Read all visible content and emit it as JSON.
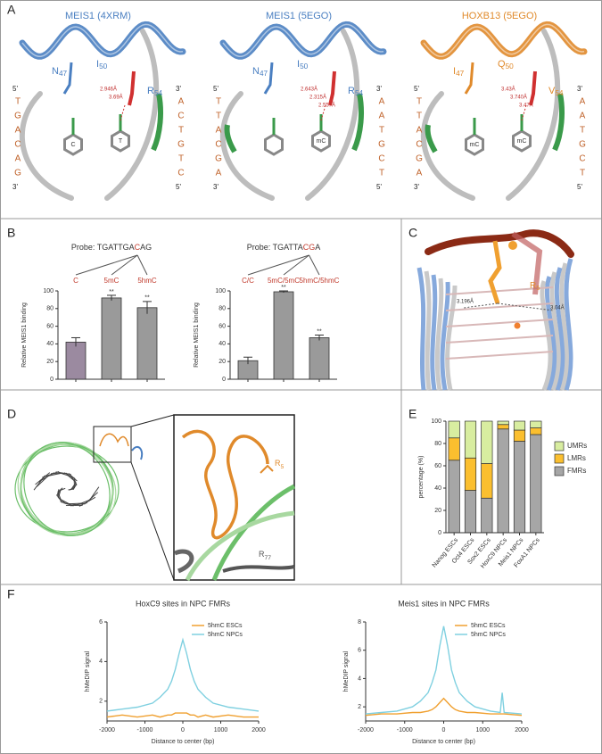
{
  "panels": [
    "A",
    "B",
    "C",
    "D",
    "E",
    "F"
  ],
  "structures": [
    {
      "title": "MEIS1 (4XRM)",
      "color": "#4a7fc1",
      "residues": [
        {
          "aa": "N",
          "pos": "47"
        },
        {
          "aa": "I",
          "pos": "50"
        },
        {
          "aa": "R",
          "pos": "54"
        }
      ],
      "strand_left": {
        "start": "5'",
        "bases": [
          "T",
          "G",
          "A",
          "C",
          "A",
          "G"
        ],
        "end": "3'"
      },
      "strand_right": {
        "start": "3'",
        "bases": [
          "A",
          "C",
          "T",
          "G",
          "T",
          "C"
        ],
        "end": "5'"
      },
      "rings": [
        "C",
        "T"
      ],
      "distances": [
        "2.946Å",
        "3.69Å"
      ]
    },
    {
      "title": "MEIS1 (5EGO)",
      "color": "#4a7fc1",
      "residues": [
        {
          "aa": "N",
          "pos": "47"
        },
        {
          "aa": "I",
          "pos": "50"
        },
        {
          "aa": "R",
          "pos": "54"
        }
      ],
      "strand_left": {
        "start": "5'",
        "bases": [
          "T",
          "T",
          "A",
          "C",
          "G",
          "A"
        ],
        "end": "3'"
      },
      "strand_right": {
        "start": "3'",
        "bases": [
          "A",
          "A",
          "T",
          "G",
          "C",
          "T"
        ],
        "end": "5'"
      },
      "rings": [
        "mC"
      ],
      "distances": [
        "2.643Å",
        "2.315Å",
        "2.557Å"
      ]
    },
    {
      "title": "HOXB13 (5EGO)",
      "color": "#e08a2b",
      "residues": [
        {
          "aa": "I",
          "pos": "47"
        },
        {
          "aa": "Q",
          "pos": "50"
        },
        {
          "aa": "V",
          "pos": "54"
        }
      ],
      "strand_left": {
        "start": "5'",
        "bases": [
          "T",
          "T",
          "A",
          "C",
          "G",
          "A"
        ],
        "end": "3'"
      },
      "strand_right": {
        "start": "3'",
        "bases": [
          "A",
          "A",
          "T",
          "G",
          "C",
          "T"
        ],
        "end": "5'"
      },
      "rings": [
        "mC",
        "mC"
      ],
      "distances": [
        "3.43Å",
        "3.740Å",
        "3.47Å"
      ]
    }
  ],
  "panel_C": {
    "residue": {
      "aa": "R",
      "pos": "5"
    },
    "distances": [
      "3.196Å",
      "3.04Å"
    ]
  },
  "panel_D": {
    "residues": [
      {
        "aa": "R",
        "pos": "5"
      },
      {
        "aa": "R",
        "pos": "77"
      }
    ]
  },
  "chart_data": [
    {
      "type": "bar",
      "probe": {
        "prefix": "Probe: TGATTGA",
        "highlight": "C",
        "suffix": "AG"
      },
      "categories": [
        "C",
        "5mC",
        "5hmC"
      ],
      "values": [
        42,
        92,
        81
      ],
      "errors": [
        5,
        3,
        7
      ],
      "annotations": [
        null,
        "**",
        "**"
      ],
      "colors": [
        "#9b8aa0",
        "#9a9a9a",
        "#9a9a9a"
      ],
      "ylabel": "Relative MEIS1 binding",
      "ylim": [
        0,
        100
      ],
      "yticks": [
        0,
        20,
        40,
        60,
        80,
        100
      ]
    },
    {
      "type": "bar",
      "probe": {
        "prefix": "Probe: TGATTA",
        "highlight": "CG",
        "suffix": "A"
      },
      "categories": [
        "C/C",
        "5mC/5mC",
        "5hmC/5hmC"
      ],
      "values": [
        21,
        99,
        47
      ],
      "errors": [
        4,
        1,
        3
      ],
      "annotations": [
        null,
        "**",
        "**"
      ],
      "colors": [
        "#9a9a9a",
        "#9a9a9a",
        "#9a9a9a"
      ],
      "ylabel": "Relative MEIS1 binding",
      "ylim": [
        0,
        100
      ],
      "yticks": [
        0,
        20,
        40,
        60,
        80,
        100
      ]
    },
    {
      "type": "stacked_bar",
      "categories": [
        "Nanog ESCs",
        "Oct4 ESCs",
        "Sox2 ESCs",
        "HoxC9 NPCs",
        "Meis1 NPCs",
        "FoxA1 NPCs"
      ],
      "series": [
        {
          "name": "FMRs",
          "color": "#a6a6a6",
          "values": [
            65,
            38,
            31,
            93,
            82,
            88
          ]
        },
        {
          "name": "LMRs",
          "color": "#fbbf2f",
          "values": [
            20,
            29,
            31,
            4,
            10,
            6
          ]
        },
        {
          "name": "UMRs",
          "color": "#d8eda0",
          "values": [
            15,
            33,
            38,
            3,
            8,
            6
          ]
        }
      ],
      "ylabel": "percentage (%)",
      "ylim": [
        0,
        100
      ],
      "yticks": [
        0,
        20,
        40,
        60,
        80,
        100
      ],
      "legend": "right"
    },
    {
      "type": "line",
      "title": "HoxC9 sites in NPC FMRs",
      "xlabel": "Distance to center (bp)",
      "ylabel": "hMeDIP signal",
      "x": [
        -2000,
        -1600,
        -1200,
        -800,
        -600,
        -400,
        -300,
        -200,
        -100,
        0,
        100,
        200,
        300,
        400,
        600,
        800,
        1200,
        1600,
        2000
      ],
      "series": [
        {
          "name": "5hmC ESCs",
          "color": "#f0a030",
          "values": [
            1.2,
            1.3,
            1.2,
            1.3,
            1.2,
            1.3,
            1.3,
            1.4,
            1.4,
            1.4,
            1.4,
            1.3,
            1.3,
            1.2,
            1.3,
            1.2,
            1.3,
            1.2,
            1.2
          ]
        },
        {
          "name": "5hmC NPCs",
          "color": "#7fd0e0",
          "values": [
            1.5,
            1.6,
            1.7,
            1.9,
            2.2,
            2.6,
            3.0,
            3.6,
            4.4,
            5.1,
            4.4,
            3.6,
            3.0,
            2.6,
            2.2,
            1.9,
            1.7,
            1.6,
            1.5
          ]
        }
      ],
      "xlim": [
        -2000,
        2000
      ],
      "xticks": [
        -2000,
        -1000,
        0,
        1000,
        2000
      ],
      "ylim": [
        1,
        6
      ],
      "yticks": [
        2,
        4,
        6
      ],
      "legend": "upper right"
    },
    {
      "type": "line",
      "title": "Meis1 sites in NPC FMRs",
      "xlabel": "Distance to center (bp)",
      "ylabel": "hMeDIP signal",
      "x": [
        -2000,
        -1600,
        -1200,
        -800,
        -600,
        -400,
        -300,
        -200,
        -100,
        0,
        100,
        200,
        300,
        400,
        600,
        800,
        1200,
        1450,
        1500,
        1550,
        2000
      ],
      "series": [
        {
          "name": "5hmC ESCs",
          "color": "#f0a030",
          "values": [
            1.4,
            1.5,
            1.5,
            1.6,
            1.6,
            1.7,
            1.8,
            2.0,
            2.3,
            2.6,
            2.3,
            2.0,
            1.8,
            1.7,
            1.6,
            1.6,
            1.5,
            1.5,
            1.5,
            1.5,
            1.4
          ]
        },
        {
          "name": "5hmC NPCs",
          "color": "#7fd0e0",
          "values": [
            1.5,
            1.6,
            1.7,
            2.0,
            2.4,
            3.0,
            3.7,
            4.6,
            6.3,
            7.7,
            6.3,
            4.6,
            3.7,
            3.0,
            2.4,
            2.0,
            1.7,
            1.6,
            3.0,
            1.6,
            1.5
          ]
        }
      ],
      "xlim": [
        -2000,
        2000
      ],
      "xticks": [
        -2000,
        -1000,
        0,
        1000,
        2000
      ],
      "ylim": [
        1,
        8
      ],
      "yticks": [
        2,
        4,
        6,
        8
      ],
      "legend": "upper right"
    }
  ]
}
